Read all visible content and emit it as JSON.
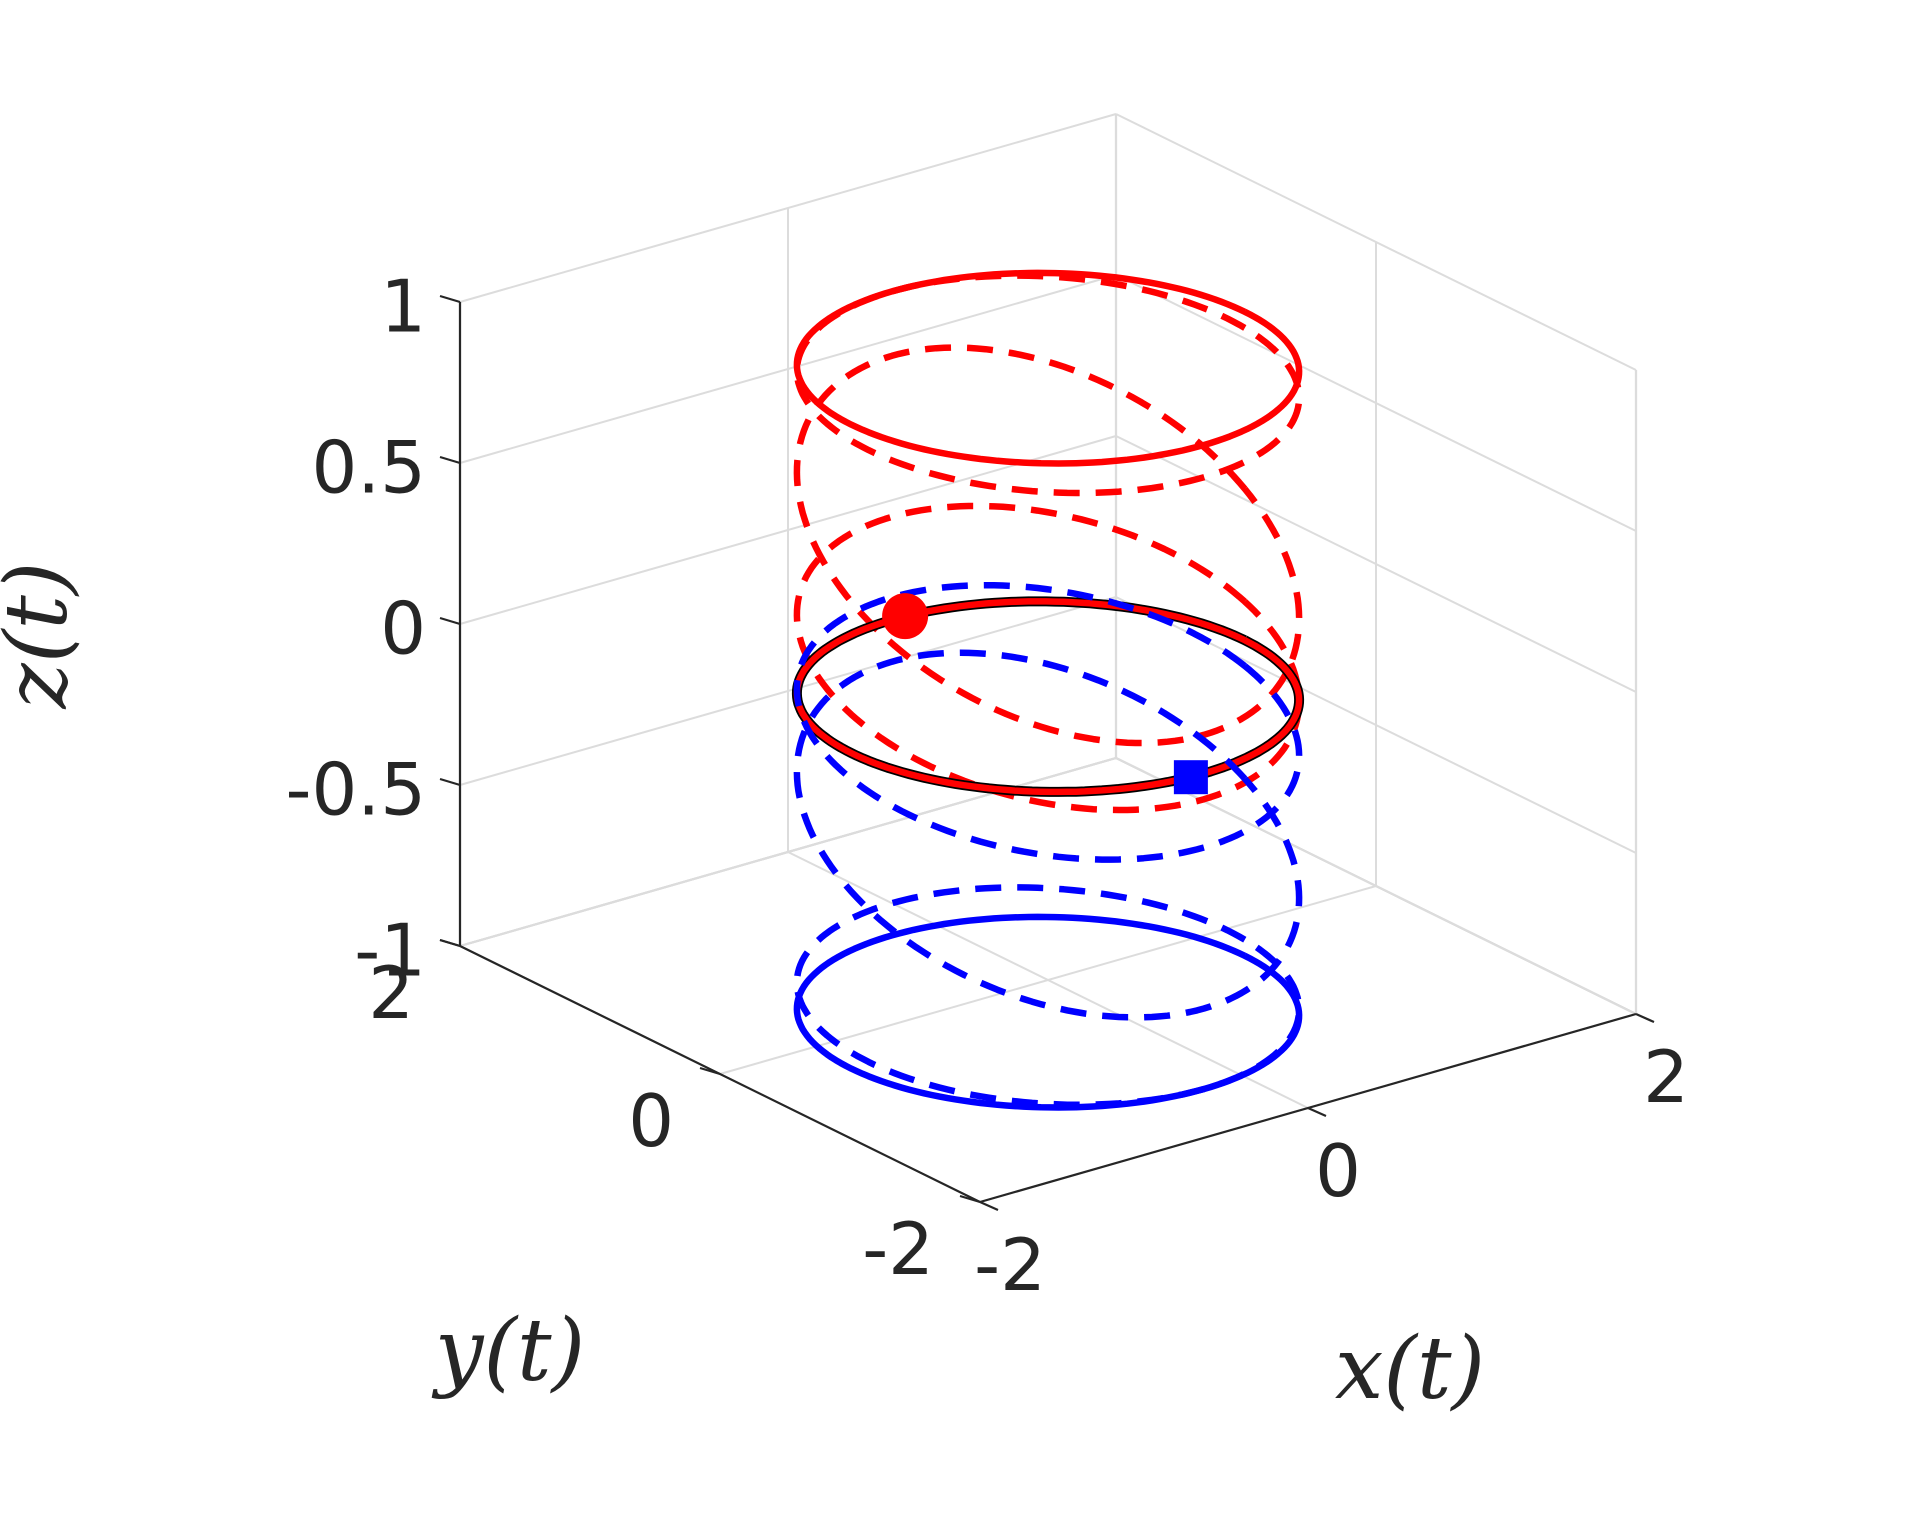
{
  "chart_data": {
    "type": "line3d",
    "title": "",
    "xlabel": "x(t)",
    "ylabel": "y(t)",
    "zlabel": "z(t)",
    "xlim": [
      -2,
      2
    ],
    "ylim": [
      -2,
      2
    ],
    "zlim": [
      -1,
      1
    ],
    "x_ticks": [
      {
        "value": -2,
        "label": "-2"
      },
      {
        "value": 0,
        "label": "0"
      },
      {
        "value": 2,
        "label": "2"
      }
    ],
    "y_ticks": [
      {
        "value": -2,
        "label": "-2"
      },
      {
        "value": 0,
        "label": "0"
      },
      {
        "value": 2,
        "label": "2"
      }
    ],
    "z_ticks": [
      {
        "value": -1,
        "label": "-1"
      },
      {
        "value": -0.5,
        "label": "-0.5"
      },
      {
        "value": 0,
        "label": "0"
      },
      {
        "value": 0.5,
        "label": "0.5"
      },
      {
        "value": 1,
        "label": "1"
      }
    ],
    "grid": true,
    "series": [
      {
        "kind": "circle",
        "color": "#ff0000",
        "style": "solid",
        "center": [
          0,
          0
        ],
        "radius": 1.2,
        "z": 0.9
      },
      {
        "kind": "circle",
        "color": "#ff0000",
        "style": "dashed",
        "center": [
          0,
          0
        ],
        "radius": 1.2,
        "z": 0.85,
        "tilt": 0.05
      },
      {
        "kind": "circle",
        "color": "#ff0000",
        "style": "dashed",
        "center": [
          0,
          0
        ],
        "radius": 1.2,
        "z": 0.35,
        "tilt": 0.35
      },
      {
        "kind": "circle",
        "color": "#ff0000",
        "style": "dashed",
        "center": [
          0,
          0
        ],
        "radius": 1.2,
        "z": 0.0,
        "tilt": 0.2
      },
      {
        "kind": "circle",
        "color": "#000000",
        "style": "solid",
        "center": [
          0,
          0
        ],
        "radius": 1.2,
        "z": -0.12
      },
      {
        "kind": "circle",
        "color": "#ff0000",
        "style": "solid",
        "center": [
          0,
          0
        ],
        "radius": 1.2,
        "z": -0.12
      },
      {
        "kind": "circle",
        "color": "#0000ff",
        "style": "dashed",
        "center": [
          0,
          0
        ],
        "radius": 1.2,
        "z": -0.2,
        "tilt": 0.15
      },
      {
        "kind": "circle",
        "color": "#0000ff",
        "style": "dashed",
        "center": [
          0,
          0
        ],
        "radius": 1.2,
        "z": -0.55,
        "tilt": 0.3
      },
      {
        "kind": "circle",
        "color": "#0000ff",
        "style": "dashed",
        "center": [
          0,
          0
        ],
        "radius": 1.2,
        "z": -1.05,
        "tilt": 0.05
      },
      {
        "kind": "circle",
        "color": "#0000ff",
        "style": "solid",
        "center": [
          0,
          0
        ],
        "radius": 1.2,
        "z": -1.1
      }
    ],
    "markers": [
      {
        "color": "#ff0000",
        "shape": "circle",
        "x": 0.08,
        "y": 1.2,
        "z": -0.12
      },
      {
        "color": "#0000ff",
        "shape": "square",
        "x": -0.08,
        "y": -1.2,
        "z": -0.12
      }
    ]
  }
}
